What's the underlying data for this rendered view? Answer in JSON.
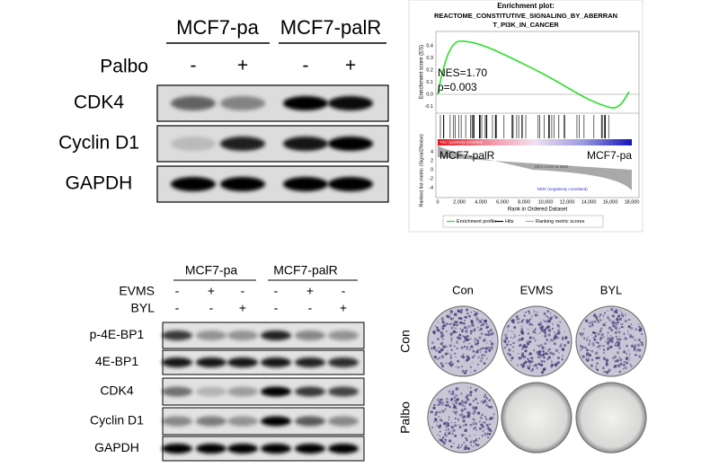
{
  "blot_a": {
    "groups": [
      "MCF7-pa",
      "MCF7-palR"
    ],
    "treatment": {
      "label": "Palbo",
      "signs": [
        "-",
        "+",
        "-",
        "+"
      ]
    },
    "rows": [
      "CDK4",
      "Cyclin D1",
      "GAPDH"
    ]
  },
  "gsea": {
    "title": "Enrichment plot:",
    "gene_set": [
      "REACTOME_CONSTITUTIVE_SIGNALING_BY_ABERRAN",
      "T_PI3K_IN_CANCER"
    ],
    "es_label": "Enrichment score (ES)",
    "es_ticks": [
      "0.4",
      "0.3",
      "0.2",
      "0.1",
      "0.0",
      "-0.1"
    ],
    "nes": "NES=1.70",
    "p": "p=0.003",
    "pos_label": "'REL' (positively correlated)",
    "neg_label": "'SEN' (negatively correlated)",
    "zero_cross": "Zero cross at 8884",
    "left_group": "MCF7-palR",
    "right_group": "MCF7-pa",
    "metric_label": "Ranked list metric (Signal2Noise)",
    "metric_ticks": [
      "4",
      "2",
      "0",
      "-2",
      "-4"
    ],
    "rank_ticks": [
      "0",
      "2,000",
      "4,000",
      "6,000",
      "8,000",
      "10,000",
      "12,000",
      "14,000",
      "16,000",
      "18,000"
    ],
    "rank_label": "Rank in Ordered Dataset",
    "legend": [
      "Enrichment profile",
      "Hits",
      "Ranking metric scores"
    ]
  },
  "blot_c": {
    "groups": [
      "MCF7-pa",
      "MCF7-palR"
    ],
    "treatments": [
      {
        "label": "EVMS",
        "signs": [
          "-",
          "+",
          "-",
          "-",
          "+",
          "-"
        ]
      },
      {
        "label": "BYL",
        "signs": [
          "-",
          "-",
          "+",
          "-",
          "-",
          "+"
        ]
      }
    ],
    "rows": [
      "p-4E-BP1",
      "4E-BP1",
      "CDK4",
      "Cyclin D1",
      "GAPDH"
    ]
  },
  "colony": {
    "columns": [
      "Con",
      "EVMS",
      "BYL"
    ],
    "rows": [
      "Con",
      "Palbo"
    ]
  }
}
